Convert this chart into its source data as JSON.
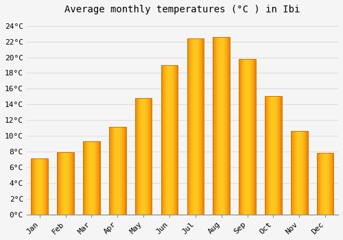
{
  "title": "Average monthly temperatures (°C ) in Ibi",
  "months": [
    "Jan",
    "Feb",
    "Mar",
    "Apr",
    "May",
    "Jun",
    "Jul",
    "Aug",
    "Sep",
    "Oct",
    "Nov",
    "Dec"
  ],
  "values": [
    7.1,
    7.9,
    9.3,
    11.1,
    14.8,
    19.0,
    22.4,
    22.6,
    19.8,
    15.1,
    10.6,
    7.8
  ],
  "bar_color_center": "#FFB830",
  "bar_color_edge": "#F08000",
  "ylim": [
    0,
    25
  ],
  "ytick_step": 2,
  "background_color": "#F5F5F5",
  "plot_bg_color": "#F5F5F5",
  "grid_color": "#DDDDDD",
  "font_family": "monospace",
  "title_fontsize": 10,
  "tick_fontsize": 8
}
